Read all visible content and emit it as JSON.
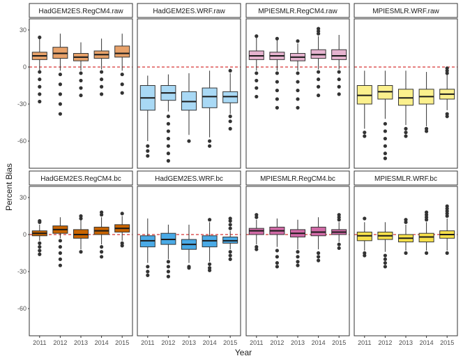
{
  "chart_data": {
    "type": "boxplot",
    "xlabel": "Year",
    "ylabel": "Percent Bias",
    "ylim": [
      -82,
      39
    ],
    "yticks": [
      30,
      0,
      -30,
      -60
    ],
    "reference_line": 0,
    "reference_color": "#cc0000",
    "categories": [
      "2011",
      "2012",
      "2013",
      "2014",
      "2015"
    ],
    "rows": [
      {
        "panels": [
          {
            "title": "HadGEM2ES.RegCM4.raw",
            "fill": "#e8a26a",
            "boxes": [
              {
                "q1": 6,
                "median": 9,
                "q3": 12,
                "lo": -3,
                "hi": 23,
                "out_lo": [
                  -4,
                  -10,
                  -16,
                  -22,
                  -28
                ],
                "out_hi": [
                  24
                ]
              },
              {
                "q1": 7,
                "median": 11,
                "q3": 16,
                "lo": -3,
                "hi": 27,
                "out_lo": [
                  -6,
                  -14,
                  -22,
                  -30,
                  -38
                ],
                "out_hi": []
              },
              {
                "q1": 5,
                "median": 8,
                "q3": 11,
                "lo": -3,
                "hi": 20,
                "out_lo": [
                  -5,
                  -11,
                  -17,
                  -23
                ],
                "out_hi": []
              },
              {
                "q1": 7,
                "median": 10,
                "q3": 13,
                "lo": -2,
                "hi": 23,
                "out_lo": [
                  -4,
                  -10,
                  -16,
                  -22
                ],
                "out_hi": []
              },
              {
                "q1": 8,
                "median": 11,
                "q3": 17,
                "lo": -3,
                "hi": 27,
                "out_lo": [
                  -6,
                  -14,
                  -21
                ],
                "out_hi": []
              }
            ]
          },
          {
            "title": "HadGEM2ES.WRF.raw",
            "fill": "#a9d9f5",
            "boxes": [
              {
                "q1": -35,
                "median": -25,
                "q3": -15,
                "lo": -60,
                "hi": -7,
                "out_lo": [
                  -64,
                  -68,
                  -72
                ],
                "out_hi": []
              },
              {
                "q1": -27,
                "median": -21,
                "q3": -15,
                "lo": -36,
                "hi": -6,
                "out_lo": [
                  -40,
                  -46,
                  -52,
                  -58,
                  -64,
                  -70,
                  -76
                ],
                "out_hi": []
              },
              {
                "q1": -35,
                "median": -28,
                "q3": -20,
                "lo": -55,
                "hi": -5,
                "out_lo": [
                  -60
                ],
                "out_hi": []
              },
              {
                "q1": -33,
                "median": -24,
                "q3": -17,
                "lo": -57,
                "hi": -3,
                "out_lo": [
                  -60,
                  -64
                ],
                "out_hi": []
              },
              {
                "q1": -29,
                "median": -24,
                "q3": -20,
                "lo": -38,
                "hi": -5,
                "out_lo": [
                  -3,
                  -40,
                  -44,
                  -50
                ],
                "out_hi": []
              }
            ]
          },
          {
            "title": "MPIESMLR.RegCM4.raw",
            "fill": "#e6b3cf",
            "boxes": [
              {
                "q1": 6,
                "median": 9,
                "q3": 13,
                "lo": -3,
                "hi": 24,
                "out_lo": [
                  -5,
                  -11,
                  -17,
                  -24
                ],
                "out_hi": [
                  25
                ]
              },
              {
                "q1": 6,
                "median": 9,
                "q3": 12,
                "lo": -3,
                "hi": 22,
                "out_lo": [
                  -5,
                  -12,
                  -19,
                  -26,
                  -33
                ],
                "out_hi": [
                  23
                ]
              },
              {
                "q1": 5,
                "median": 8,
                "q3": 11,
                "lo": -3,
                "hi": 19,
                "out_lo": [
                  -5,
                  -12,
                  -19,
                  -26,
                  -33
                ],
                "out_hi": [
                  21
                ]
              },
              {
                "q1": 7,
                "median": 10,
                "q3": 14,
                "lo": -2,
                "hi": 25,
                "out_lo": [
                  -4,
                  -10,
                  -16,
                  -23
                ],
                "out_hi": [
                  27,
                  29,
                  31
                ]
              },
              {
                "q1": 6,
                "median": 9,
                "q3": 14,
                "lo": -2,
                "hi": 26,
                "out_lo": [
                  -4,
                  -10,
                  -16,
                  -22
                ],
                "out_hi": []
              }
            ]
          },
          {
            "title": "MPIESMLR.WRF.raw",
            "fill": "#fbf08d",
            "boxes": [
              {
                "q1": -30,
                "median": -23,
                "q3": -15,
                "lo": -50,
                "hi": -3,
                "out_lo": [
                  -53,
                  -56
                ],
                "out_hi": []
              },
              {
                "q1": -26,
                "median": -20,
                "q3": -15,
                "lo": -42,
                "hi": -3,
                "out_lo": [
                  -46,
                  -52,
                  -58,
                  -64,
                  -70,
                  -74
                ],
                "out_hi": []
              },
              {
                "q1": -31,
                "median": -25,
                "q3": -18,
                "lo": -47,
                "hi": -3,
                "out_lo": [
                  -50,
                  -53,
                  -56
                ],
                "out_hi": []
              },
              {
                "q1": -30,
                "median": -24,
                "q3": -18,
                "lo": -48,
                "hi": -4,
                "out_lo": [
                  -50,
                  -52
                ],
                "out_hi": []
              },
              {
                "q1": -26,
                "median": -22,
                "q3": -18,
                "lo": -35,
                "hi": -6,
                "out_lo": [
                  -1,
                  -3,
                  -5,
                  -38,
                  -40
                ],
                "out_hi": []
              }
            ]
          }
        ]
      },
      {
        "panels": [
          {
            "title": "HadGEM2ES.RegCM4.bc",
            "fill": "#c96400",
            "boxes": [
              {
                "q1": -1,
                "median": 1,
                "q3": 3,
                "lo": -5,
                "hi": 8,
                "out_lo": [
                  -7,
                  -10,
                  -13,
                  -16
                ],
                "out_hi": [
                  10,
                  11
                ]
              },
              {
                "q1": 1,
                "median": 4,
                "q3": 7,
                "lo": -3,
                "hi": 14,
                "out_lo": [
                  -5,
                  -10,
                  -15,
                  -20,
                  -25
                ],
                "out_hi": []
              },
              {
                "q1": -3,
                "median": 0,
                "q3": 4,
                "lo": -12,
                "hi": 12,
                "out_lo": [
                  -14
                ],
                "out_hi": [
                  13,
                  15
                ]
              },
              {
                "q1": 0,
                "median": 3,
                "q3": 6,
                "lo": -8,
                "hi": 14,
                "out_lo": [
                  -10,
                  -14,
                  -18
                ],
                "out_hi": [
                  16,
                  18
                ]
              },
              {
                "q1": 2,
                "median": 5,
                "q3": 8,
                "lo": -5,
                "hi": 15,
                "out_lo": [
                  -7,
                  -9
                ],
                "out_hi": [
                  17
                ]
              }
            ]
          },
          {
            "title": "HadGEM2ES.WRF.bc",
            "fill": "#4aaae6",
            "boxes": [
              {
                "q1": -10,
                "median": -5,
                "q3": -1,
                "lo": -23,
                "hi": 13,
                "out_lo": [
                  -26,
                  -30,
                  -33
                ],
                "out_hi": []
              },
              {
                "q1": -8,
                "median": -4,
                "q3": 1,
                "lo": -20,
                "hi": 8,
                "out_lo": [
                  -22,
                  -26,
                  -30,
                  -34
                ],
                "out_hi": []
              },
              {
                "q1": -12,
                "median": -8,
                "q3": -4,
                "lo": -23,
                "hi": 8,
                "out_lo": [
                  -26,
                  -27
                ],
                "out_hi": []
              },
              {
                "q1": -10,
                "median": -5,
                "q3": -1,
                "lo": -22,
                "hi": 10,
                "out_lo": [
                  -24,
                  -27,
                  -29
                ],
                "out_hi": [
                  12
                ]
              },
              {
                "q1": -7,
                "median": -5,
                "q3": -2,
                "lo": -12,
                "hi": 3,
                "out_lo": [
                  -14,
                  -17,
                  -20
                ],
                "out_hi": [
                  5,
                  8,
                  11,
                  13
                ]
              }
            ]
          },
          {
            "title": "MPIESMLR.RegCM4.bc",
            "fill": "#d06aa6",
            "boxes": [
              {
                "q1": 0,
                "median": 3,
                "q3": 5,
                "lo": -8,
                "hi": 12,
                "out_lo": [
                  -10,
                  -12
                ],
                "out_hi": [
                  14,
                  16
                ]
              },
              {
                "q1": 0,
                "median": 3,
                "q3": 6,
                "lo": -10,
                "hi": 13,
                "out_lo": [
                  -13,
                  -18,
                  -23,
                  -26
                ],
                "out_hi": []
              },
              {
                "q1": -2,
                "median": 1,
                "q3": 4,
                "lo": -12,
                "hi": 12,
                "out_lo": [
                  -14,
                  -18,
                  -22,
                  -25
                ],
                "out_hi": []
              },
              {
                "q1": -1,
                "median": 2,
                "q3": 6,
                "lo": -12,
                "hi": 14,
                "out_lo": [
                  -15,
                  -18,
                  -21
                ],
                "out_hi": []
              },
              {
                "q1": 0,
                "median": 2,
                "q3": 4,
                "lo": -6,
                "hi": 10,
                "out_lo": [
                  -8,
                  -11
                ],
                "out_hi": [
                  12,
                  14,
                  16
                ]
              }
            ]
          },
          {
            "title": "MPIESMLR.WRF.bc",
            "fill": "#f6e04a",
            "boxes": [
              {
                "q1": -5,
                "median": -1,
                "q3": 2,
                "lo": -13,
                "hi": 10,
                "out_lo": [
                  -15,
                  -17
                ],
                "out_hi": [
                  13
                ]
              },
              {
                "q1": -4,
                "median": -1,
                "q3": 2,
                "lo": -14,
                "hi": 10,
                "out_lo": [
                  -17,
                  -20,
                  -23,
                  -26
                ],
                "out_hi": []
              },
              {
                "q1": -6,
                "median": -3,
                "q3": 0,
                "lo": -13,
                "hi": 8,
                "out_lo": [
                  -15
                ],
                "out_hi": [
                  10,
                  12
                ]
              },
              {
                "q1": -6,
                "median": -2,
                "q3": 1,
                "lo": -13,
                "hi": 10,
                "out_lo": [
                  -15
                ],
                "out_hi": [
                  12,
                  14,
                  16,
                  18
                ]
              },
              {
                "q1": -3,
                "median": 0,
                "q3": 3,
                "lo": -13,
                "hi": 13,
                "out_lo": [
                  -15
                ],
                "out_hi": [
                  15,
                  17,
                  19,
                  21,
                  23
                ]
              }
            ]
          }
        ]
      }
    ]
  }
}
